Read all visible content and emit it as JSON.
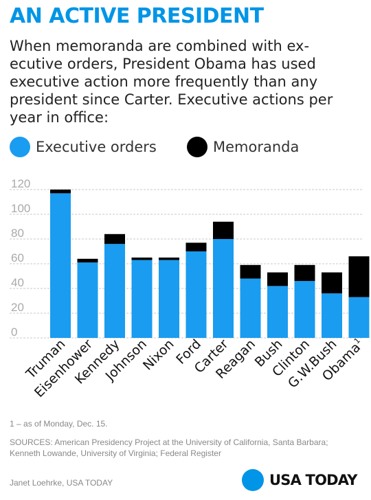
{
  "header": {
    "title": "AN ACTIVE PRESIDENT",
    "subtitle": "When memoranda are combined with ex-ecutive orders, President Obama has used executive action more frequently than any president since Carter. Executive actions per year in office:"
  },
  "legend": [
    {
      "label": "Executive orders",
      "color": "#1a9cf0"
    },
    {
      "label": "Memoranda",
      "color": "#000000"
    }
  ],
  "chart_data": {
    "type": "bar",
    "stacked": true,
    "categories": [
      "Truman",
      "Eisenhower",
      "Kennedy",
      "Johnson",
      "Nixon",
      "Ford",
      "Carter",
      "Reagan",
      "Bush",
      "Clinton",
      "G.W.Bush",
      "Obama"
    ],
    "category_superscripts": [
      "",
      "",
      "",
      "",
      "",
      "",
      "",
      "",
      "",
      "",
      "",
      "1"
    ],
    "series": [
      {
        "name": "Executive orders",
        "color": "#1a9cf0",
        "values": [
          117,
          61,
          76,
          63,
          63,
          70,
          80,
          48,
          42,
          46,
          36,
          33
        ]
      },
      {
        "name": "Memoranda",
        "color": "#000000",
        "values": [
          3,
          3,
          8,
          2,
          2,
          7,
          14,
          11,
          11,
          13,
          17,
          33
        ]
      }
    ],
    "yticks": [
      0,
      20,
      40,
      60,
      80,
      100,
      120
    ],
    "ylim": [
      0,
      120
    ],
    "grid": true,
    "legend_position": "top-left"
  },
  "footer": {
    "note": "1 – as of Monday, Dec. 15.",
    "sources": "SOURCES: American Presidency Project at the University of California, Santa Barbara; Kenneth Lowande, University of Virginia; Federal Register",
    "credit": "Janet Loehrke, USA TODAY",
    "logo": "USA TODAY",
    "logo_color": "#0095e6"
  }
}
